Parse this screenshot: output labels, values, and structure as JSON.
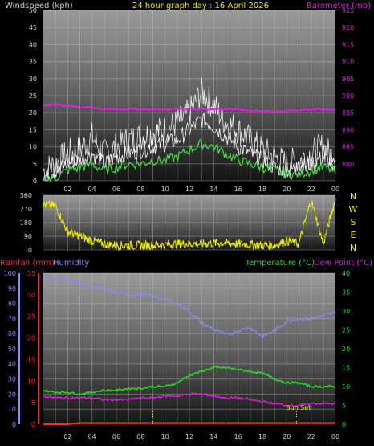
{
  "header": {
    "left": "Windspeed (kph)",
    "center": "24 hour graph day : 16 April 2026",
    "right": "Barometer (mb)"
  },
  "colors": {
    "wind": "#ffffff",
    "gust": "#ffffff",
    "avg_wind": "#44dd44",
    "barometer": "#dd22dd",
    "direction": "#eeee00",
    "rain": "#ff2a2a",
    "humidity": "#8a8aff",
    "temperature": "#22dd22",
    "dewpoint": "#dd22dd",
    "sunset": "#eeee00",
    "axis_label": "#cccccc"
  },
  "x_ticks": [
    "02",
    "04",
    "06",
    "08",
    "10",
    "12",
    "14",
    "16",
    "18",
    "20",
    "22",
    "00"
  ],
  "chart_data": [
    {
      "type": "line",
      "title": "24 hour graph day : 16 April 2026",
      "ylabel": "Windspeed (kph)",
      "ylabel_right": "Barometer (mb)",
      "ylim": [
        0,
        50
      ],
      "ylim_right": [
        875,
        925
      ],
      "y_ticks": [
        "0",
        "5",
        "10",
        "15",
        "20",
        "25",
        "30",
        "35",
        "40",
        "45",
        "50"
      ],
      "y_ticks_right": [
        "880",
        "885",
        "890",
        "895",
        "900",
        "905",
        "910",
        "915",
        "920",
        "925"
      ],
      "x": [
        0,
        1,
        2,
        3,
        4,
        5,
        6,
        7,
        8,
        9,
        10,
        11,
        12,
        13,
        14,
        15,
        16,
        17,
        18,
        19,
        20,
        21,
        22,
        23,
        24
      ],
      "series": [
        {
          "name": "gust",
          "axis": "left",
          "values": [
            3,
            5,
            8,
            9,
            13,
            8,
            10,
            12,
            13,
            14,
            15,
            17,
            20,
            26,
            22,
            17,
            15,
            12,
            9,
            7,
            5,
            6,
            8,
            10,
            6
          ]
        },
        {
          "name": "wind",
          "axis": "left",
          "values": [
            1,
            3,
            5,
            6,
            8,
            5,
            7,
            8,
            9,
            10,
            11,
            12,
            15,
            18,
            16,
            13,
            10,
            8,
            6,
            4,
            3,
            4,
            5,
            7,
            4
          ]
        },
        {
          "name": "avg_wind",
          "axis": "left",
          "values": [
            0,
            1,
            3,
            4,
            5,
            3,
            4,
            5,
            5,
            6,
            6,
            7,
            9,
            11,
            10,
            8,
            6,
            5,
            4,
            3,
            2,
            2,
            3,
            4,
            3
          ]
        },
        {
          "name": "barometer",
          "axis": "right",
          "values": [
            897,
            897.5,
            897,
            896.5,
            896.5,
            896,
            896,
            896,
            896,
            896,
            896,
            896,
            896,
            896,
            896,
            896,
            896,
            895.5,
            895.5,
            895.5,
            895.5,
            895.8,
            896,
            896,
            896
          ]
        }
      ]
    },
    {
      "type": "line",
      "ylim": [
        0,
        360
      ],
      "y_ticks": [
        "0",
        "90",
        "180",
        "270",
        "360"
      ],
      "compass": [
        "N",
        "W",
        "S",
        "E",
        "N"
      ],
      "x": [
        0,
        1,
        2,
        3,
        4,
        5,
        6,
        7,
        8,
        9,
        10,
        11,
        12,
        13,
        14,
        15,
        16,
        17,
        18,
        19,
        20,
        21,
        22,
        23,
        24
      ],
      "series": [
        {
          "name": "direction",
          "values": [
            300,
            290,
            120,
            90,
            60,
            40,
            30,
            30,
            30,
            30,
            35,
            40,
            40,
            40,
            45,
            45,
            40,
            35,
            30,
            30,
            60,
            40,
            330,
            40,
            340
          ]
        }
      ]
    },
    {
      "type": "line",
      "labels": {
        "rain": "Rainfall (mm)",
        "humidity": "Humidity",
        "temperature": "Temperature (°C)",
        "dewpoint": "Dew Point (°C)"
      },
      "annotation": "Sun Set",
      "sunset_hour": 20.8,
      "event_hour": 9.0,
      "ylim_humidity": [
        0,
        100
      ],
      "ylim_rain": [
        0,
        35
      ],
      "ylim_temp": [
        0,
        40
      ],
      "y_ticks_humidity": [
        "0",
        "10",
        "20",
        "30",
        "40",
        "50",
        "60",
        "70",
        "80",
        "90",
        "100"
      ],
      "y_ticks_rain": [
        "0",
        "5",
        "10",
        "15",
        "20",
        "25",
        "30",
        "35"
      ],
      "y_ticks_temp": [
        "0",
        "5",
        "10",
        "15",
        "20",
        "25",
        "30",
        "35",
        "40"
      ],
      "x": [
        0,
        1,
        2,
        3,
        4,
        5,
        6,
        7,
        8,
        9,
        10,
        11,
        12,
        13,
        14,
        15,
        16,
        17,
        18,
        19,
        20,
        21,
        22,
        23,
        24
      ],
      "series": [
        {
          "name": "rain",
          "axis": "rain",
          "values": [
            0,
            0,
            0,
            0.3,
            0.3,
            0.3,
            0.3,
            0.3,
            0.3,
            0.3,
            0.3,
            0.3,
            0.3,
            0.3,
            0.3,
            0.3,
            0.3,
            0.3,
            0.3,
            0.3,
            0.3,
            0.3,
            0.3,
            0.3,
            0.3
          ]
        },
        {
          "name": "humidity",
          "axis": "humidity",
          "values": [
            97,
            97,
            96,
            94,
            91,
            89,
            87,
            86,
            86,
            85,
            83,
            80,
            75,
            67,
            63,
            59,
            62,
            64,
            58,
            62,
            68,
            70,
            70,
            72,
            74
          ]
        },
        {
          "name": "temperature",
          "axis": "temp",
          "values": [
            9,
            8.5,
            8.5,
            8,
            8.5,
            9,
            9,
            9.5,
            9.5,
            10,
            10,
            11,
            13,
            14,
            15,
            15,
            14.5,
            14,
            13.5,
            12,
            11,
            11,
            10,
            10,
            10
          ]
        },
        {
          "name": "dewpoint",
          "axis": "temp",
          "values": [
            7.5,
            7,
            7,
            7,
            7,
            6.5,
            6.5,
            6.5,
            7,
            7,
            7.5,
            7.5,
            8,
            8,
            7.5,
            7,
            7,
            6.5,
            6,
            5.5,
            5,
            5,
            5.5,
            5.5,
            5.5
          ]
        }
      ]
    }
  ]
}
